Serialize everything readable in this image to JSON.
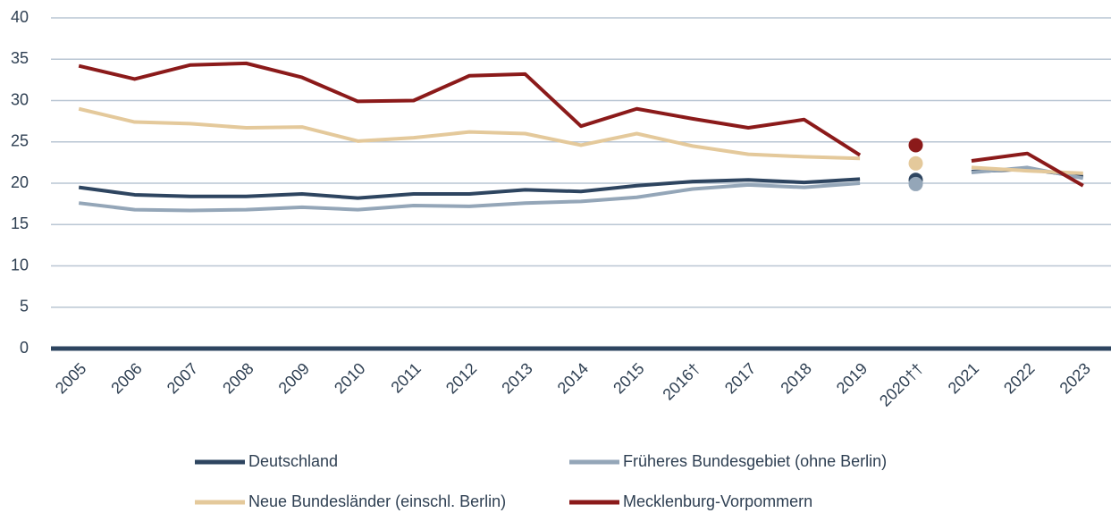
{
  "chart_data": {
    "type": "line",
    "categories": [
      "2005",
      "2006",
      "2007",
      "2008",
      "2009",
      "2010",
      "2011",
      "2012",
      "2013",
      "2014",
      "2015",
      "2016†",
      "2017",
      "2018",
      "2019",
      "2020††",
      "2021",
      "2022",
      "2023"
    ],
    "markers_only": [
      15
    ],
    "series": [
      {
        "name": "Deutschland",
        "color": "#2e4560",
        "values": [
          19.5,
          18.6,
          18.4,
          18.4,
          18.7,
          18.2,
          18.7,
          18.7,
          19.2,
          19.0,
          19.7,
          20.2,
          20.4,
          20.1,
          20.5,
          20.4,
          21.4,
          21.7,
          20.8
        ]
      },
      {
        "name": "Früheres Bundesgebiet (ohne Berlin)",
        "color": "#94a6b8",
        "values": [
          17.6,
          16.8,
          16.7,
          16.8,
          17.1,
          16.8,
          17.3,
          17.2,
          17.6,
          17.8,
          18.3,
          19.3,
          19.8,
          19.5,
          20.0,
          19.9,
          21.3,
          21.9,
          20.6
        ]
      },
      {
        "name": "Neue Bundesländer (einschl. Berlin)",
        "color": "#e4c99b",
        "values": [
          29.0,
          27.4,
          27.2,
          26.7,
          26.8,
          25.1,
          25.5,
          26.2,
          26.0,
          24.6,
          26.0,
          24.5,
          23.5,
          23.2,
          23.0,
          22.4,
          21.9,
          21.5,
          21.2
        ]
      },
      {
        "name": "Mecklenburg-Vorpommern",
        "color": "#8b1a1a",
        "values": [
          34.2,
          32.6,
          34.3,
          34.5,
          32.8,
          29.9,
          30.0,
          33.0,
          33.2,
          26.9,
          29.0,
          27.8,
          26.7,
          27.7,
          23.4,
          24.6,
          22.7,
          23.6,
          19.7
        ]
      }
    ],
    "ylim": [
      0,
      40
    ],
    "yticks": [
      0,
      5,
      10,
      15,
      20,
      25,
      30,
      35,
      40
    ],
    "grid": true,
    "legend": "bottom"
  }
}
